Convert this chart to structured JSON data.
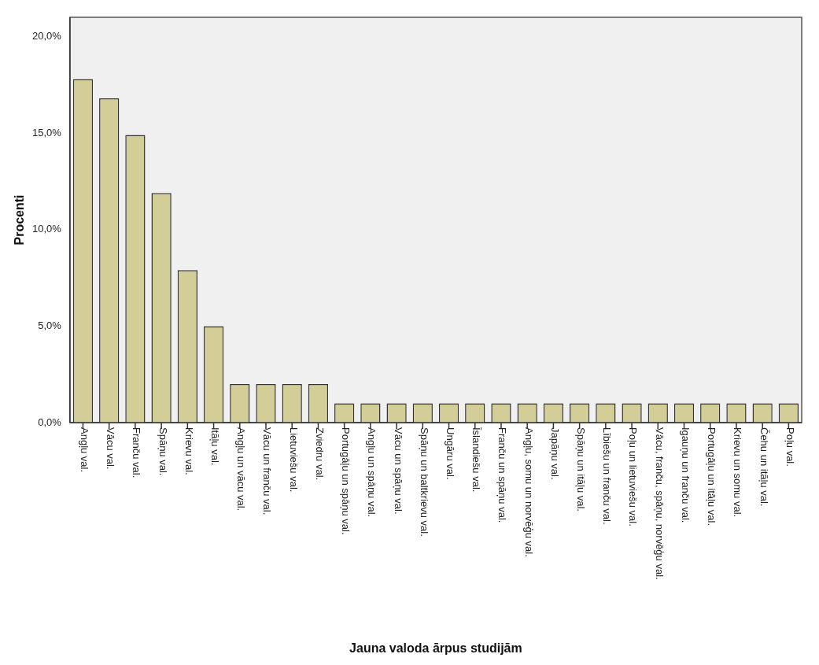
{
  "chart_data": {
    "type": "bar",
    "xlabel": "Jauna valoda ārpus studijām",
    "ylabel": "Procenti",
    "categories": [
      "Angļu val.",
      "Vācu val.",
      "Franču val.",
      "Spāņu val.",
      "Krievu val.",
      "Itāļu val.",
      "Angļu un vācu val.",
      "Vācu un franču val.",
      "Lietuviešu val.",
      "Zviedru val.",
      "Portugāļu un spāņu val.",
      "Angļu un spāņu val.",
      "Vācu un spāņu val.",
      "Spāņu un baltkrievu val.",
      "Ungāru val.",
      "Īslandiešu val.",
      "Franču un spāņu val.",
      "Angļu, somu un norvēģu val.",
      "Japāņu val.",
      "Spāņu un itāļu val.",
      "Lībiešu un franču val.",
      "Poļu un lietuviešu val.",
      "Vācu, franču, spāņu, norvēģu val.",
      "Igauņu un franču val.",
      "Portugāļu un itāļu val.",
      "Krievu un somu val.",
      "Čehu un itāļu val.",
      "Poļu val."
    ],
    "values": [
      17.8,
      16.8,
      14.9,
      11.9,
      7.9,
      5.0,
      2.0,
      2.0,
      2.0,
      2.0,
      1.0,
      1.0,
      1.0,
      1.0,
      1.0,
      1.0,
      1.0,
      1.0,
      1.0,
      1.0,
      1.0,
      1.0,
      1.0,
      1.0,
      1.0,
      1.0,
      1.0,
      1.0
    ],
    "color": "#d3ce97",
    "ylim": [
      0,
      21
    ],
    "yticks": [
      {
        "value": 0,
        "label": "0,0%"
      },
      {
        "value": 5,
        "label": "5,0%"
      },
      {
        "value": 10,
        "label": "10,0%"
      },
      {
        "value": 15,
        "label": "15,0%"
      },
      {
        "value": 20,
        "label": "20,0%"
      }
    ],
    "grid": false,
    "legend": false
  }
}
